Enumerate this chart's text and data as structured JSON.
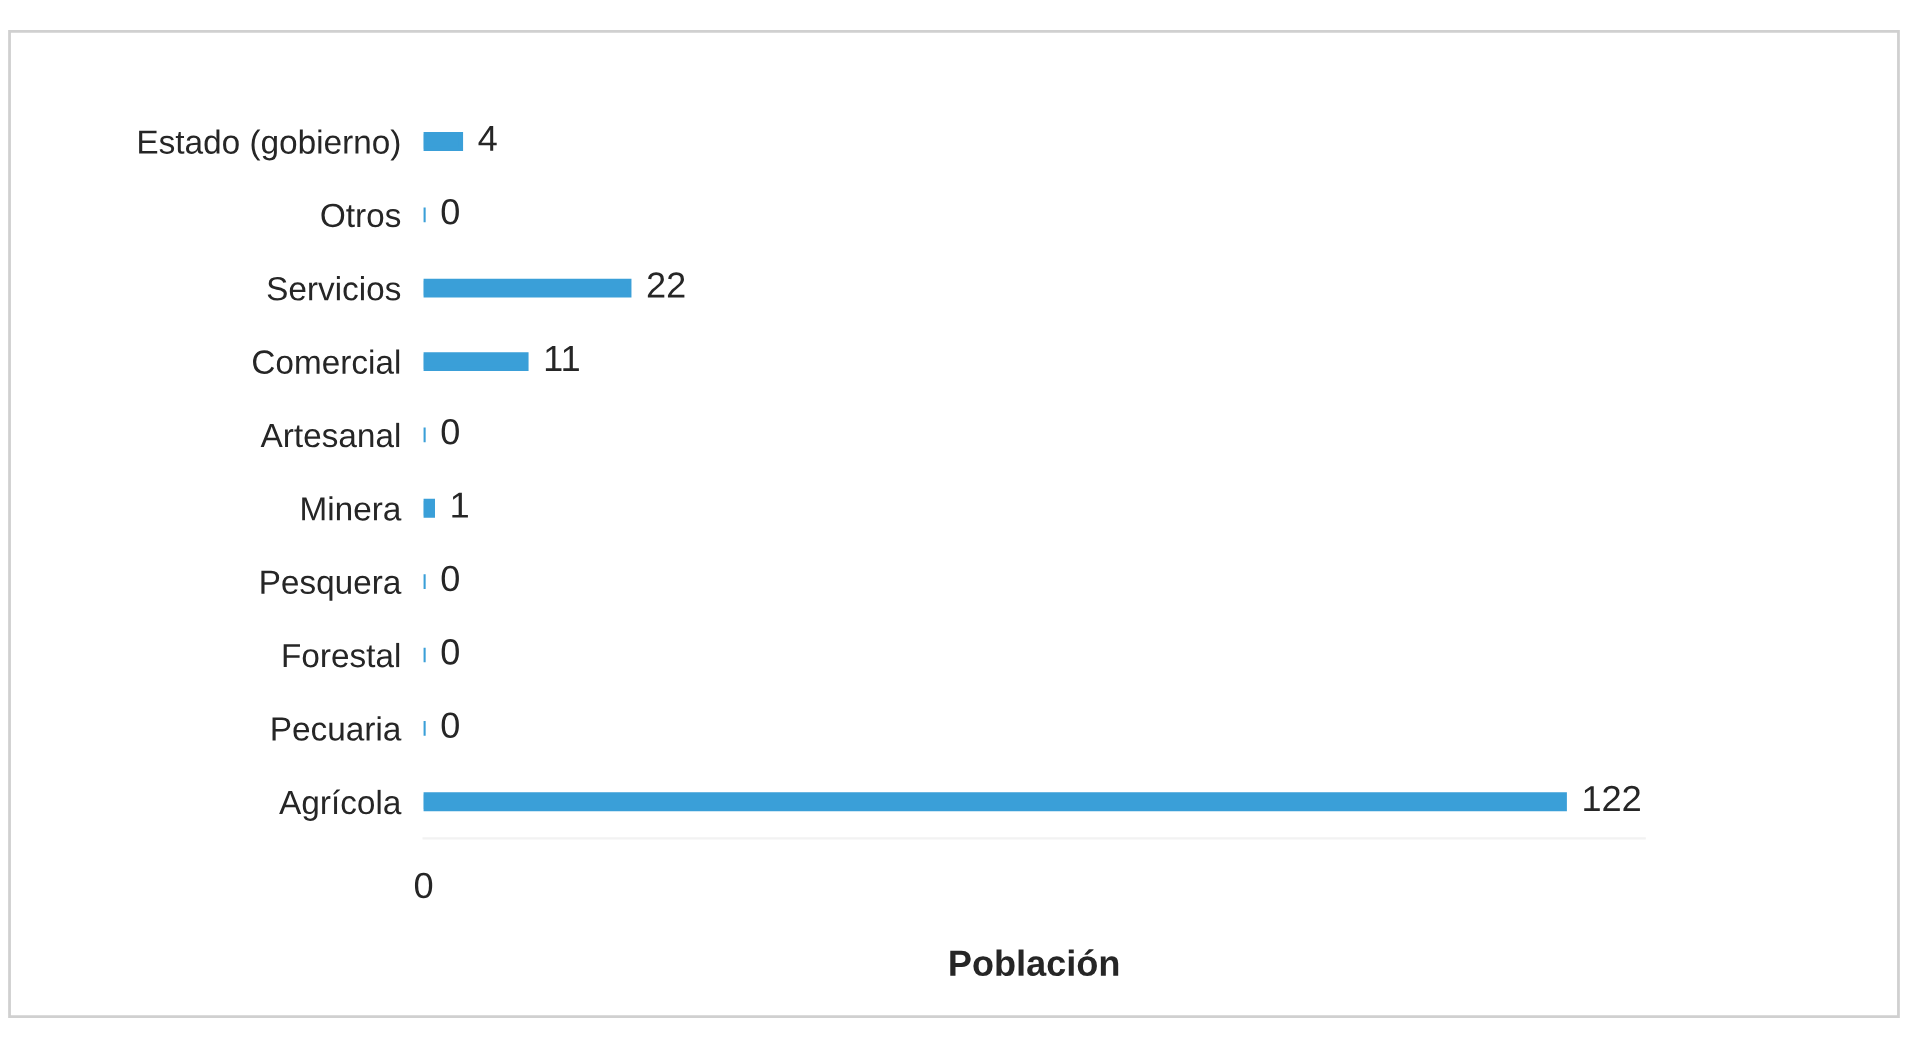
{
  "chart_data": {
    "type": "bar",
    "orientation": "horizontal",
    "xlabel": "Población",
    "categories": [
      "Estado (gobierno)",
      "Otros",
      "Servicios",
      "Comercial",
      "Artesanal",
      "Minera",
      "Pesquera",
      "Forestal",
      "Pecuaria",
      "Agrícola"
    ],
    "values": [
      4,
      0,
      22,
      11,
      0,
      1,
      0,
      0,
      0,
      122
    ],
    "color": "#3a9fd8",
    "data_labels": true,
    "annotations": [
      "0"
    ],
    "grid": false,
    "legend": false
  }
}
